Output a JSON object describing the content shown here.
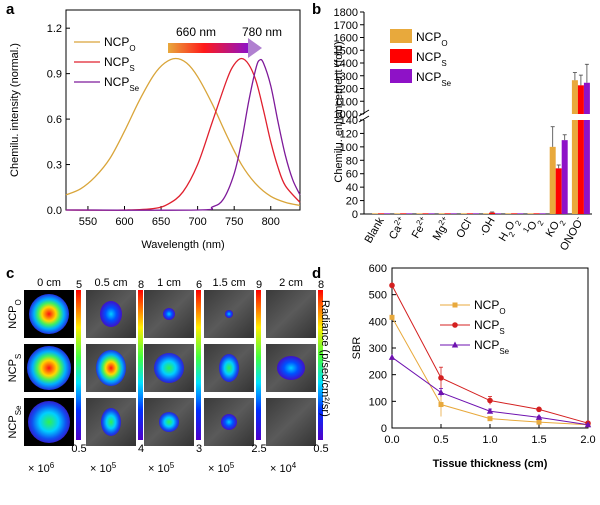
{
  "panels": {
    "a": {
      "letter": "a",
      "chart_data": {
        "type": "line",
        "xlabel": "Wavelength (nm)",
        "ylabel": "Chemilu. intensity (normal.)",
        "xlim": [
          520,
          840
        ],
        "ylim": [
          0,
          1.32
        ],
        "xticks": [
          550,
          600,
          650,
          700,
          750,
          800
        ],
        "yticks": [
          0.0,
          0.3,
          0.6,
          0.9,
          1.2
        ],
        "annotation": {
          "left": "660 nm",
          "right": "780 nm"
        },
        "series": [
          {
            "name": "NCP",
            "sub": "O",
            "color": "#D9A53A",
            "x": [
              520,
              540,
              560,
              580,
              600,
              620,
              640,
              655,
              670,
              685,
              700,
              720,
              740,
              760,
              780,
              800,
              820,
              840
            ],
            "y": [
              0.1,
              0.14,
              0.22,
              0.34,
              0.52,
              0.72,
              0.89,
              0.97,
              1.0,
              0.97,
              0.88,
              0.7,
              0.49,
              0.3,
              0.17,
              0.09,
              0.05,
              0.03
            ]
          },
          {
            "name": "NCP",
            "sub": "S",
            "color": "#E0202E",
            "x": [
              520,
              600,
              640,
              660,
              680,
              700,
              720,
              740,
              750,
              760,
              770,
              780,
              790,
              800,
              810,
              820,
              840
            ],
            "y": [
              0.0,
              0.0,
              0.01,
              0.04,
              0.12,
              0.3,
              0.58,
              0.86,
              0.96,
              1.0,
              0.96,
              0.85,
              0.66,
              0.45,
              0.28,
              0.16,
              0.05
            ]
          },
          {
            "name": "NCP",
            "sub": "Se",
            "color": "#7E1A9A",
            "x": [
              520,
              700,
              720,
              735,
              750,
              760,
              770,
              780,
              785,
              790,
              800,
              810,
              820,
              830,
              840
            ],
            "y": [
              0.0,
              0.0,
              0.02,
              0.07,
              0.24,
              0.45,
              0.72,
              0.94,
              0.99,
              0.97,
              0.82,
              0.58,
              0.36,
              0.2,
              0.1
            ]
          }
        ]
      }
    },
    "b": {
      "letter": "b",
      "chart_data": {
        "type": "bar",
        "ylabel": "Chemilu. enhancement (fold)",
        "categories": [
          {
            "base": "Blank",
            "sup": "",
            "sub": ""
          },
          {
            "base": "Ca",
            "sup": "2+",
            "sub": ""
          },
          {
            "base": "Fe",
            "sup": "2+",
            "sub": ""
          },
          {
            "base": "Mg",
            "sup": "2+",
            "sub": ""
          },
          {
            "base": "OCl",
            "sup": "-",
            "sub": ""
          },
          {
            "base": "·OH",
            "sup": "",
            "sub": ""
          },
          {
            "base": "H",
            "sup": "",
            "sub": "2",
            "tail": "O",
            "sub2": "2"
          },
          {
            "base": "",
            "sup": "1",
            "sub": "",
            "tail": "O",
            "sub2": "2"
          },
          {
            "base": "KO",
            "sup": "",
            "sub": "2"
          },
          {
            "base": "ONOO",
            "sup": "-",
            "sub": ""
          }
        ],
        "yticks_lower": [
          0,
          20,
          40,
          60,
          80,
          100,
          120,
          140
        ],
        "yticks_upper": [
          1000,
          1100,
          1200,
          1300,
          1400,
          1500,
          1600,
          1700,
          1800
        ],
        "break_between": [
          140,
          1000
        ],
        "series": [
          {
            "name": "NCP",
            "sub": "O",
            "color": "#E8A93C",
            "values": [
              1,
              1,
              1,
              1,
              1,
              1,
              1,
              1,
              100,
              1265
            ],
            "errors": [
              0,
              0,
              0,
              0,
              0,
              0,
              0,
              0,
              30,
              60
            ]
          },
          {
            "name": "NCP",
            "sub": "S",
            "color": "#FF0000",
            "values": [
              1,
              1,
              1,
              1,
              1,
              2,
              1,
              1,
              68,
              1225
            ],
            "errors": [
              0,
              0,
              0,
              0,
              0,
              1,
              0,
              0,
              5,
              80
            ]
          },
          {
            "name": "NCP",
            "sub": "Se",
            "color": "#8E12C7",
            "values": [
              1,
              1,
              1,
              1,
              1,
              1,
              1,
              1,
              110,
              1245
            ],
            "errors": [
              0,
              0,
              0,
              0,
              0,
              0,
              0,
              0,
              8,
              145
            ]
          }
        ]
      }
    },
    "c": {
      "letter": "c",
      "columns": [
        {
          "depth": "0 cm",
          "scale_max": "5",
          "scale_min": "0.5",
          "mult": "× 10",
          "exp": "6"
        },
        {
          "depth": "0.5 cm",
          "scale_max": "8",
          "scale_min": "4",
          "mult": "× 10",
          "exp": "5"
        },
        {
          "depth": "1 cm",
          "scale_max": "6",
          "scale_min": "3",
          "mult": "× 10",
          "exp": "5"
        },
        {
          "depth": "1.5 cm",
          "scale_max": "9",
          "scale_min": "2.5",
          "mult": "× 10",
          "exp": "5"
        },
        {
          "depth": "2 cm",
          "scale_max": "8",
          "scale_min": "0.5",
          "mult": "× 10",
          "exp": "4"
        }
      ],
      "rows": [
        {
          "base": "NCP",
          "sub": "O"
        },
        {
          "base": "NCP",
          "sub": "S"
        },
        {
          "base": "NCP",
          "sub": "Se"
        }
      ],
      "colorbar_label": "Radiance (p/sec/cm²/sr)"
    },
    "d": {
      "letter": "d",
      "chart_data": {
        "type": "line",
        "xlabel": "Tissue thickness (cm)",
        "ylabel": "SBR",
        "xlim": [
          0,
          2.0
        ],
        "ylim": [
          0,
          600
        ],
        "xticks": [
          0.0,
          0.5,
          1.0,
          1.5,
          2.0
        ],
        "yticks": [
          0,
          100,
          200,
          300,
          400,
          500,
          600
        ],
        "x": [
          0,
          0.5,
          1.0,
          1.5,
          2.0
        ],
        "series": [
          {
            "name": "NCP",
            "sub": "O",
            "color": "#E8A93C",
            "marker": "square",
            "values": [
              415,
              88,
              35,
              22,
              12
            ],
            "errors": [
              0,
              45,
              5,
              3,
              2
            ]
          },
          {
            "name": "NCP",
            "sub": "S",
            "color": "#D42020",
            "marker": "circle",
            "values": [
              535,
              188,
              103,
              70,
              18
            ],
            "errors": [
              0,
              40,
              15,
              5,
              3
            ]
          },
          {
            "name": "NCP",
            "sub": "Se",
            "color": "#6E12B0",
            "marker": "triangle",
            "values": [
              265,
              133,
              63,
              40,
              12
            ],
            "errors": [
              0,
              15,
              8,
              4,
              2
            ]
          }
        ]
      }
    }
  }
}
